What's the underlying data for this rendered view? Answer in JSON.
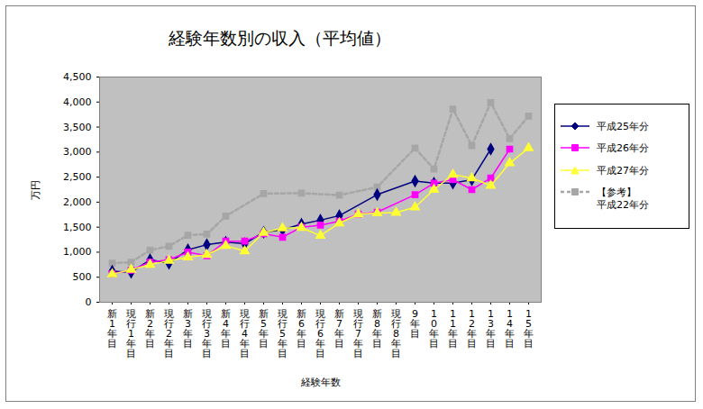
{
  "chart_data": {
    "type": "line",
    "title": "経験年数別の収入（平均値）",
    "x_label": "経験年数",
    "y_label": "万円",
    "categories": [
      "新1年目",
      "現行1年目",
      "新2年目",
      "現行2年目",
      "新3年目",
      "現行3年目",
      "新4年目",
      "現行4年目",
      "新5年目",
      "現行5年目",
      "新6年目",
      "現行6年目",
      "新7年目",
      "現行7年目",
      "新8年目",
      "現行8年目",
      "9年目",
      "10年目",
      "11年目",
      "12年目",
      "13年目",
      "14年目",
      "15年目"
    ],
    "series": [
      {
        "name": "【参考】\n平成22年分",
        "color": "#a6a6a6",
        "marker": "square",
        "line_style": "dashed",
        "values": [
          780,
          800,
          1040,
          1120,
          1340,
          1360,
          1720,
          null,
          2170,
          null,
          2180,
          null,
          2140,
          null,
          2300,
          null,
          3080,
          2660,
          3860,
          3130,
          3990,
          3270,
          3720
        ]
      },
      {
        "name": "平成25年分",
        "color": "#000080",
        "marker": "diamond",
        "line_style": "solid",
        "values": [
          620,
          600,
          850,
          780,
          1050,
          1150,
          1200,
          1170,
          1400,
          1450,
          1560,
          1640,
          1730,
          null,
          2150,
          null,
          2420,
          2380,
          2380,
          2450,
          3060,
          null,
          null
        ]
      },
      {
        "name": "平成26年分",
        "color": "#ff00ff",
        "marker": "square",
        "line_style": "solid",
        "values": [
          570,
          640,
          800,
          850,
          1000,
          930,
          1220,
          1220,
          1370,
          1300,
          1500,
          1540,
          1620,
          1760,
          1800,
          null,
          2150,
          2380,
          2450,
          2250,
          2480,
          3060,
          null
        ]
      },
      {
        "name": "平成27年分",
        "color": "#ffff33",
        "marker": "triangle",
        "line_style": "solid",
        "values": [
          560,
          650,
          750,
          830,
          900,
          950,
          1130,
          1020,
          1390,
          1480,
          1490,
          1330,
          1580,
          1760,
          1780,
          1790,
          1900,
          2250,
          2550,
          2480,
          2330,
          2780,
          3080
        ]
      }
    ],
    "ylim": [
      0,
      4500
    ],
    "yticks": [
      0,
      500,
      {
        "value": 1000,
        "label": "1,000"
      },
      {
        "value": 1500,
        "label": "1,500"
      },
      {
        "value": 2000,
        "label": "2,000"
      },
      {
        "value": 2500,
        "label": "2,500"
      },
      {
        "value": 3000,
        "label": "3,000"
      },
      {
        "value": 3500,
        "label": "3,500"
      },
      {
        "value": 4000,
        "label": "4,000"
      },
      {
        "value": 4500,
        "label": "4,500"
      }
    ],
    "grid": false,
    "legend": "right"
  }
}
